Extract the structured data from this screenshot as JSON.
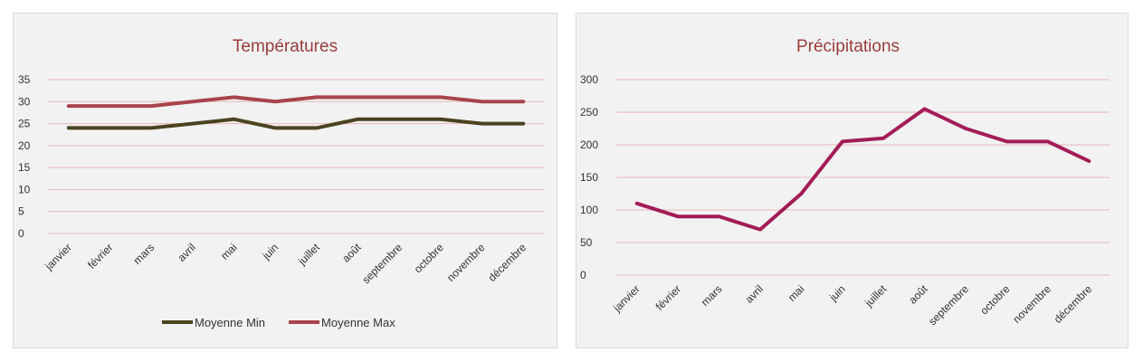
{
  "chart_data": [
    {
      "type": "line",
      "title": "Températures",
      "categories": [
        "janvier",
        "février",
        "mars",
        "avril",
        "mai",
        "juin",
        "juillet",
        "août",
        "septembre",
        "octobre",
        "novembre",
        "décembre"
      ],
      "series": [
        {
          "name": "Moyenne Min",
          "values": [
            24,
            24,
            24,
            25,
            26,
            24,
            24,
            26,
            26,
            26,
            25,
            25
          ],
          "color": "#4b4320"
        },
        {
          "name": "Moyenne Max",
          "values": [
            29,
            29,
            29,
            30,
            31,
            30,
            31,
            31,
            31,
            31,
            30,
            30
          ],
          "color": "#a8444c"
        }
      ],
      "ylim": [
        0,
        35
      ],
      "yticks": [
        0,
        5,
        10,
        15,
        20,
        25,
        30,
        35
      ],
      "grid": true,
      "legend": "bottom",
      "gridline_color": "#e6b8b8"
    },
    {
      "type": "line",
      "title": "Précipitations",
      "categories": [
        "janvier",
        "février",
        "mars",
        "avril",
        "mai",
        "juin",
        "juillet",
        "août",
        "septembre",
        "octobre",
        "novembre",
        "décembre"
      ],
      "series": [
        {
          "values": [
            110,
            90,
            90,
            70,
            125,
            205,
            210,
            255,
            225,
            205,
            205,
            175
          ],
          "color": "#a31c58"
        }
      ],
      "ylim": [
        0,
        300
      ],
      "yticks": [
        0,
        50,
        100,
        150,
        200,
        250,
        300
      ],
      "grid": true,
      "legend": "none",
      "gridline_color": "#e6b8b8"
    }
  ]
}
